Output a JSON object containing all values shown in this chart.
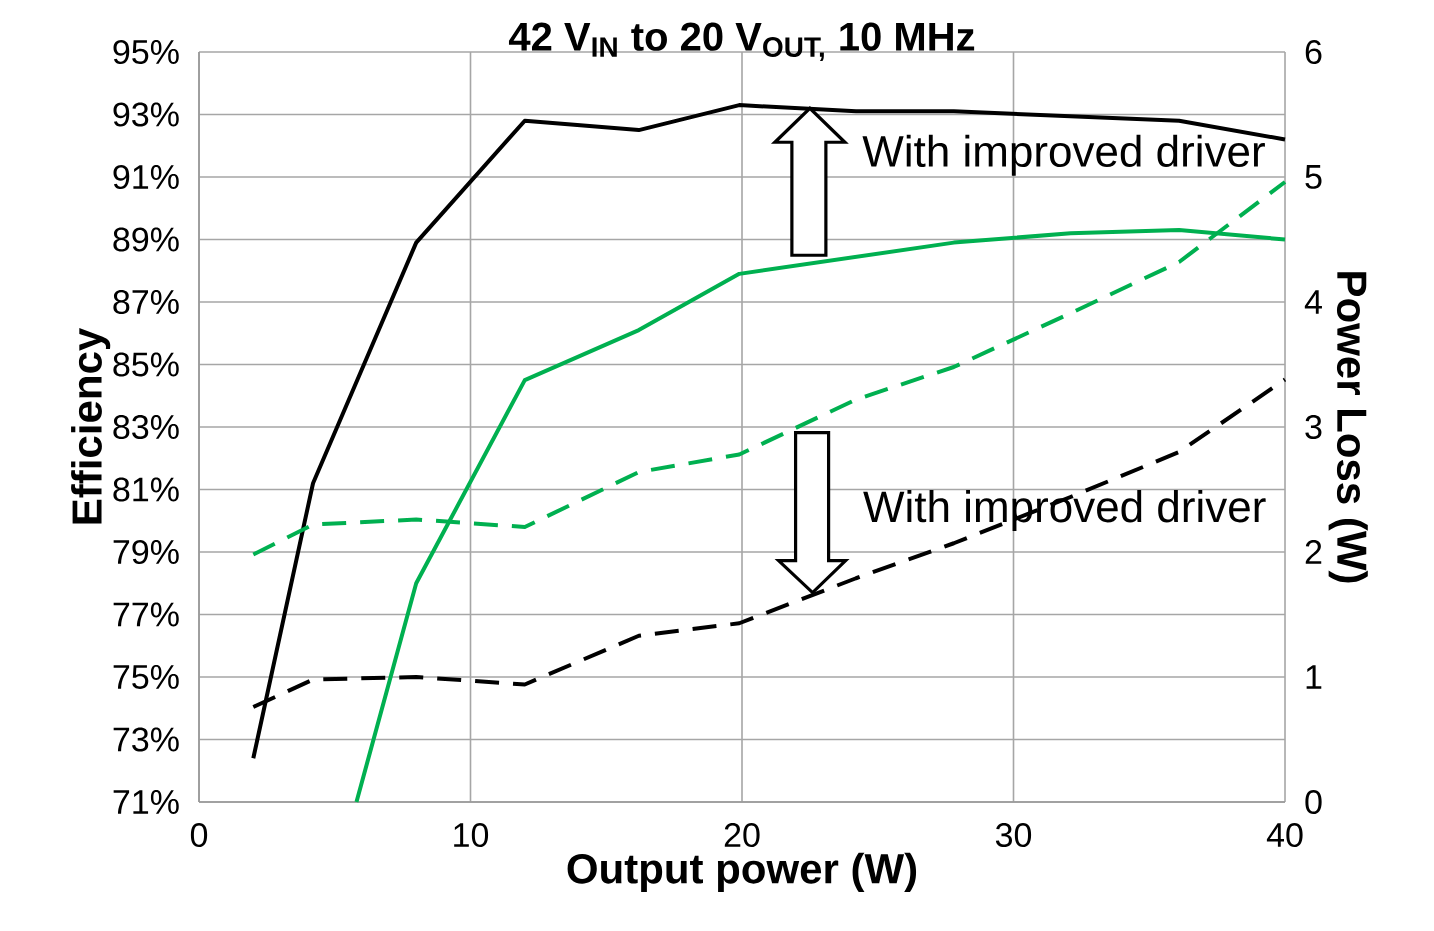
{
  "chart_data": {
    "type": "line",
    "title": "42 V$_{IN}$ to 20 V$_{OUT,}$ 10 MHz",
    "xlabel": "Output power (W)",
    "ylabel": "Efficiency",
    "y2label": "Power Loss (W)",
    "xlim": [
      0,
      40
    ],
    "xticks": [
      0,
      10,
      20,
      30,
      40
    ],
    "ylim": [
      71,
      95
    ],
    "yticks": [
      {
        "value": 71,
        "label": "71%"
      },
      {
        "value": 73,
        "label": "73%"
      },
      {
        "value": 75,
        "label": "75%"
      },
      {
        "value": 77,
        "label": "77%"
      },
      {
        "value": 79,
        "label": "79%"
      },
      {
        "value": 81,
        "label": "81%"
      },
      {
        "value": 83,
        "label": "83%"
      },
      {
        "value": 85,
        "label": "85%"
      },
      {
        "value": 87,
        "label": "87%"
      },
      {
        "value": 89,
        "label": "89%"
      },
      {
        "value": 91,
        "label": "91%"
      },
      {
        "value": 93,
        "label": "93%"
      },
      {
        "value": 95,
        "label": "95%"
      }
    ],
    "y2lim": [
      0,
      6
    ],
    "y2ticks": [
      0,
      1,
      2,
      3,
      4,
      5,
      6
    ],
    "grid": true,
    "marker": "none",
    "series": [
      {
        "color": "#000000",
        "line_style": "solid",
        "x": [
          2,
          4.2,
          8,
          12,
          16.2,
          19.9,
          24.2,
          27.8,
          36.1,
          40
        ],
        "values": [
          72.4,
          81.2,
          88.9,
          92.8,
          92.5,
          93.3,
          93.1,
          93.1,
          92.8,
          92.2
        ]
      },
      {
        "color": "#00b050",
        "line_style": "solid",
        "x": [
          5.8,
          8,
          12,
          16.2,
          19.9,
          27.8,
          32.1,
          36.1,
          40
        ],
        "values": [
          71,
          78,
          84.5,
          86.1,
          87.9,
          88.9,
          89.2,
          89.3,
          89
        ]
      },
      {
        "color": "#00b050",
        "line_style": "dashed",
        "axis": "y2",
        "x": [
          2,
          4.2,
          8,
          12,
          16.2,
          19.9,
          24.2,
          27.8,
          32.1,
          36.1,
          40
        ],
        "values": [
          1.98,
          2.22,
          2.26,
          2.2,
          2.64,
          2.78,
          3.22,
          3.48,
          3.91,
          4.32,
          4.96
        ]
      },
      {
        "color": "#000000",
        "line_style": "dashed",
        "axis": "y2",
        "x": [
          2,
          4.2,
          8,
          12,
          16.2,
          19.9,
          24.2,
          27.8,
          32.1,
          36.1,
          40
        ],
        "values": [
          0.76,
          0.98,
          1.0,
          0.94,
          1.33,
          1.43,
          1.79,
          2.07,
          2.44,
          2.8,
          3.38
        ]
      }
    ],
    "annotations": [
      {
        "text": "With improved driver",
        "x": 22.5,
        "y": 93.2
      },
      {
        "text": "With improved driver",
        "x": 22.6,
        "y": 77.7
      }
    ]
  }
}
